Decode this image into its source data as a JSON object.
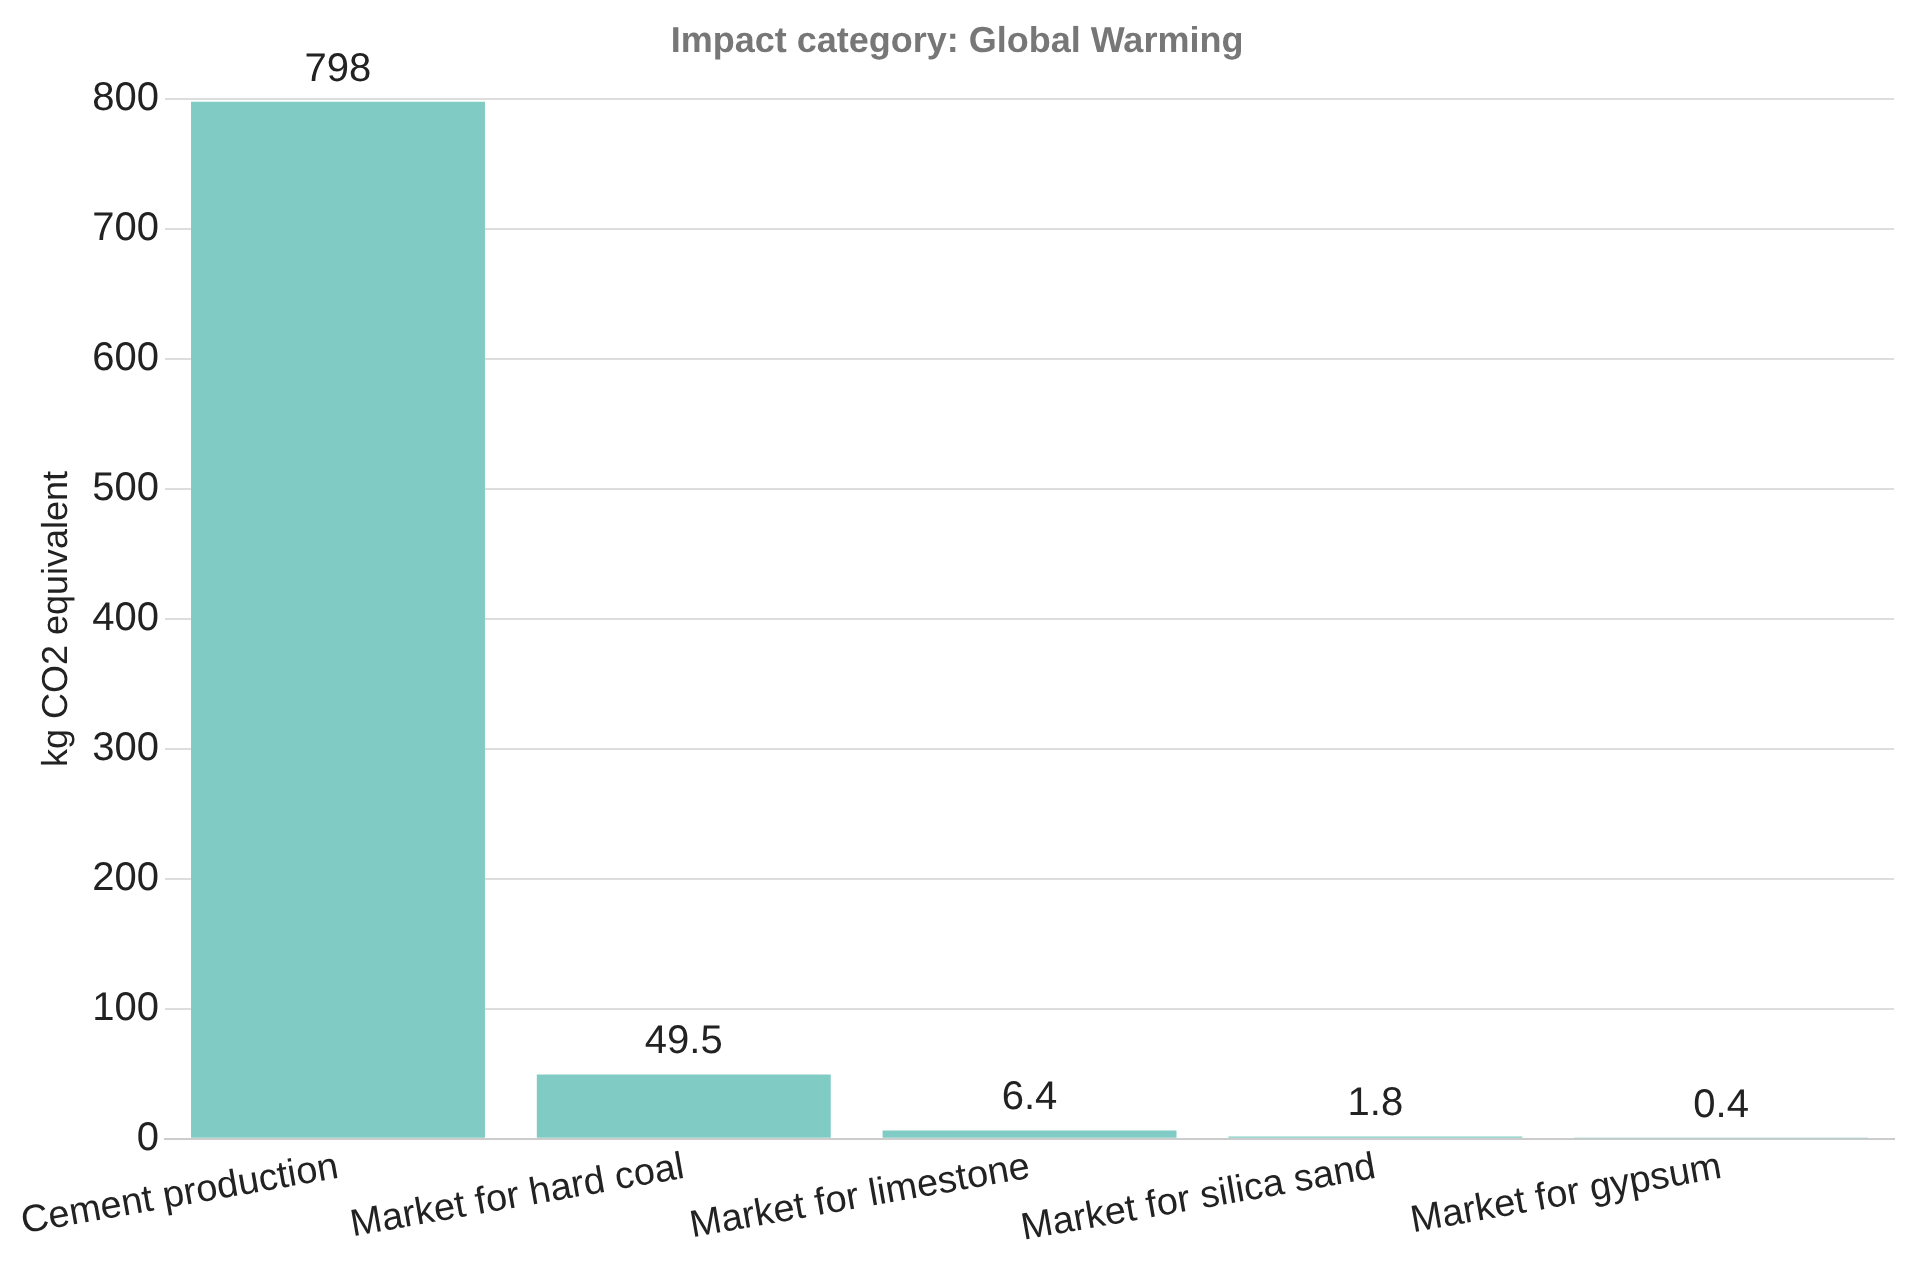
{
  "chart_data": {
    "type": "bar",
    "title": "Impact category: Global Warming",
    "ylabel": "kg CO2 equivalent",
    "categories": [
      "Cement production",
      "Market for hard coal",
      "Market for limestone",
      "Market for silica sand",
      "Market for gypsum"
    ],
    "values": [
      798,
      49.5,
      6.4,
      1.8,
      0.4
    ],
    "color": "#80cbc4",
    "ylim": [
      0,
      800
    ],
    "yticks": [
      0,
      100,
      200,
      300,
      400,
      500,
      600,
      700,
      800
    ],
    "grid": "y",
    "data_labels": true,
    "legend": false
  }
}
